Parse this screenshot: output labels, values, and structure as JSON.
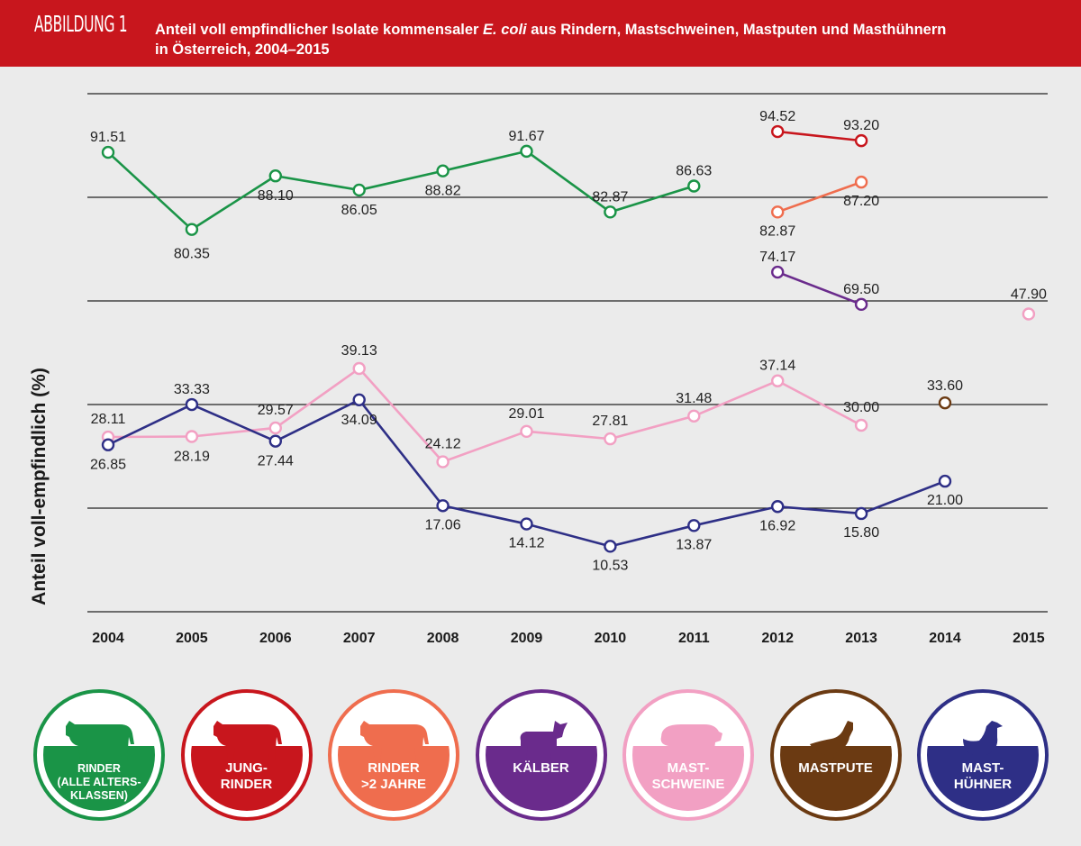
{
  "header": {
    "fig_label": "ABBILDUNG 1",
    "title_part1": "Anteil voll empfindlicher Isolate kommensaler ",
    "title_em": "E. coli",
    "title_part2": " aus Rindern, Mastschweinen, Mastputen und Masthühnern",
    "title_line2": "in Österreich, 2004–2015"
  },
  "colors": {
    "rinder": "#1a9447",
    "jungrinder": "#c8161d",
    "rinder2": "#ef6d4e",
    "kaelber": "#6a2b8c",
    "mastschweine": "#f2a0c3",
    "mastpute": "#6b3a12",
    "masthuehner": "#2e2f86"
  },
  "chart_data": {
    "type": "line",
    "ylabel": "Anteil voll-empfindlich (%)",
    "x": [
      "2004",
      "2005",
      "2006",
      "2007",
      "2008",
      "2009",
      "2010",
      "2011",
      "2012",
      "2013",
      "2014",
      "2015"
    ],
    "series": [
      {
        "name": "RINDER (ALLE ALTERSKLASSEN)",
        "values": [
          91.51,
          80.35,
          88.1,
          86.05,
          88.82,
          91.67,
          82.87,
          86.63,
          null,
          null,
          null,
          null
        ]
      },
      {
        "name": "JUNGRINDER",
        "values": [
          null,
          null,
          null,
          null,
          null,
          null,
          null,
          null,
          94.52,
          93.2,
          null,
          null
        ]
      },
      {
        "name": "RINDER >2 JAHRE",
        "values": [
          null,
          null,
          null,
          null,
          null,
          null,
          null,
          null,
          82.87,
          87.2,
          null,
          null
        ]
      },
      {
        "name": "KÄLBER",
        "values": [
          null,
          null,
          null,
          null,
          null,
          null,
          null,
          null,
          74.17,
          69.5,
          null,
          null
        ]
      },
      {
        "name": "MASTSCHWEINE",
        "values": [
          28.11,
          28.19,
          29.57,
          39.13,
          24.12,
          29.01,
          27.81,
          31.48,
          37.14,
          30.0,
          null,
          47.9
        ]
      },
      {
        "name": "MASTPUTE",
        "values": [
          null,
          null,
          null,
          null,
          null,
          null,
          null,
          null,
          null,
          null,
          33.6,
          null
        ]
      },
      {
        "name": "MASTHÜHNER",
        "values": [
          26.85,
          33.33,
          27.44,
          34.09,
          17.06,
          14.12,
          10.53,
          13.87,
          16.92,
          15.8,
          21.0,
          null
        ]
      }
    ]
  },
  "legend": [
    {
      "key": "rinder",
      "icon": "cow-icon",
      "label": "RINDER",
      "sub": "(ALLE ALTERS-\nKLASSEN)"
    },
    {
      "key": "jungrinder",
      "icon": "cow-icon",
      "label": "JUNG-\nRINDER",
      "sub": ""
    },
    {
      "key": "rinder2",
      "icon": "cow-icon",
      "label": "RINDER\n>2 JAHRE",
      "sub": ""
    },
    {
      "key": "kaelber",
      "icon": "calf-icon",
      "label": "KÄLBER",
      "sub": ""
    },
    {
      "key": "mastschweine",
      "icon": "pig-icon",
      "label": "MAST-\nSCHWEINE",
      "sub": ""
    },
    {
      "key": "mastpute",
      "icon": "turkey-icon",
      "label": "MASTPUTE",
      "sub": ""
    },
    {
      "key": "masthuehner",
      "icon": "chicken-icon",
      "label": "MAST-\nHÜHNER",
      "sub": ""
    }
  ]
}
